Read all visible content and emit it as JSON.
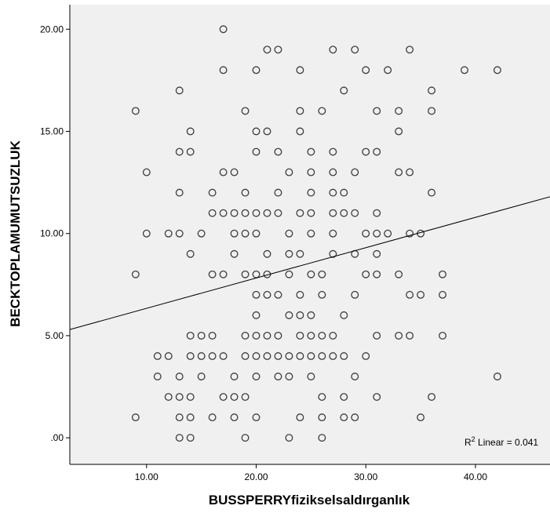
{
  "chart_data": {
    "type": "scatter",
    "xlabel": "BUSSPERRYfizikselsaldırganlık",
    "ylabel": "BECKTOPLAMUMUTSUZLUK",
    "xlim": [
      3.0,
      46.8
    ],
    "ylim": [
      -1.3,
      21.2
    ],
    "x_ticks": [
      10,
      20,
      30,
      40
    ],
    "x_tick_labels": [
      "10.00",
      "20.00",
      "30.00",
      "40.00"
    ],
    "y_ticks": [
      0,
      5,
      10,
      15,
      20
    ],
    "y_tick_labels": [
      ".00",
      "5.00",
      "10.00",
      "15.00",
      "20.00"
    ],
    "grid": false,
    "background_color": "#f0f0f0",
    "point_color": "#3c3c3c",
    "fit_line": {
      "type": "linear",
      "x": [
        3.0,
        46.8
      ],
      "y": [
        5.3,
        11.8
      ],
      "color": "#000000"
    },
    "annotation": {
      "sup": "2",
      "text_prefix": "R",
      "text_suffix": " Linear = 0.041"
    },
    "points": [
      [
        17,
        20
      ],
      [
        21,
        19
      ],
      [
        22,
        19
      ],
      [
        27,
        19
      ],
      [
        29,
        19
      ],
      [
        34,
        19
      ],
      [
        17,
        18
      ],
      [
        20,
        18
      ],
      [
        24,
        18
      ],
      [
        30,
        18
      ],
      [
        32,
        18
      ],
      [
        39,
        18
      ],
      [
        42,
        18
      ],
      [
        13,
        17
      ],
      [
        28,
        17
      ],
      [
        36,
        17
      ],
      [
        9,
        16
      ],
      [
        19,
        16
      ],
      [
        24,
        16
      ],
      [
        26,
        16
      ],
      [
        31,
        16
      ],
      [
        33,
        16
      ],
      [
        36,
        16
      ],
      [
        14,
        15
      ],
      [
        20,
        15
      ],
      [
        21,
        15
      ],
      [
        24,
        15
      ],
      [
        33,
        15
      ],
      [
        13,
        14
      ],
      [
        14,
        14
      ],
      [
        20,
        14
      ],
      [
        22,
        14
      ],
      [
        25,
        14
      ],
      [
        27,
        14
      ],
      [
        30,
        14
      ],
      [
        31,
        14
      ],
      [
        10,
        13
      ],
      [
        17,
        13
      ],
      [
        18,
        13
      ],
      [
        23,
        13
      ],
      [
        25,
        13
      ],
      [
        27,
        13
      ],
      [
        29,
        13
      ],
      [
        33,
        13
      ],
      [
        34,
        13
      ],
      [
        13,
        12
      ],
      [
        16,
        12
      ],
      [
        19,
        12
      ],
      [
        22,
        12
      ],
      [
        25,
        12
      ],
      [
        27,
        12
      ],
      [
        28,
        12
      ],
      [
        36,
        12
      ],
      [
        16,
        11
      ],
      [
        17,
        11
      ],
      [
        18,
        11
      ],
      [
        19,
        11
      ],
      [
        20,
        11
      ],
      [
        21,
        11
      ],
      [
        22,
        11
      ],
      [
        24,
        11
      ],
      [
        25,
        11
      ],
      [
        27,
        11
      ],
      [
        28,
        11
      ],
      [
        29,
        11
      ],
      [
        31,
        11
      ],
      [
        10,
        10
      ],
      [
        12,
        10
      ],
      [
        13,
        10
      ],
      [
        15,
        10
      ],
      [
        18,
        10
      ],
      [
        19,
        10
      ],
      [
        20,
        10
      ],
      [
        23,
        10
      ],
      [
        25,
        10
      ],
      [
        27,
        10
      ],
      [
        30,
        10
      ],
      [
        31,
        10
      ],
      [
        32,
        10
      ],
      [
        34,
        10
      ],
      [
        35,
        10
      ],
      [
        14,
        9
      ],
      [
        18,
        9
      ],
      [
        21,
        9
      ],
      [
        23,
        9
      ],
      [
        24,
        9
      ],
      [
        27,
        9
      ],
      [
        29,
        9
      ],
      [
        31,
        9
      ],
      [
        9,
        8
      ],
      [
        16,
        8
      ],
      [
        17,
        8
      ],
      [
        19,
        8
      ],
      [
        20,
        8
      ],
      [
        21,
        8
      ],
      [
        23,
        8
      ],
      [
        25,
        8
      ],
      [
        26,
        8
      ],
      [
        30,
        8
      ],
      [
        31,
        8
      ],
      [
        33,
        8
      ],
      [
        37,
        8
      ],
      [
        20,
        7
      ],
      [
        21,
        7
      ],
      [
        22,
        7
      ],
      [
        24,
        7
      ],
      [
        26,
        7
      ],
      [
        29,
        7
      ],
      [
        34,
        7
      ],
      [
        35,
        7
      ],
      [
        37,
        7
      ],
      [
        20,
        6
      ],
      [
        23,
        6
      ],
      [
        24,
        6
      ],
      [
        25,
        6
      ],
      [
        28,
        6
      ],
      [
        14,
        5
      ],
      [
        15,
        5
      ],
      [
        16,
        5
      ],
      [
        19,
        5
      ],
      [
        20,
        5
      ],
      [
        21,
        5
      ],
      [
        22,
        5
      ],
      [
        24,
        5
      ],
      [
        25,
        5
      ],
      [
        26,
        5
      ],
      [
        27,
        5
      ],
      [
        31,
        5
      ],
      [
        33,
        5
      ],
      [
        34,
        5
      ],
      [
        37,
        5
      ],
      [
        11,
        4
      ],
      [
        12,
        4
      ],
      [
        14,
        4
      ],
      [
        15,
        4
      ],
      [
        16,
        4
      ],
      [
        17,
        4
      ],
      [
        19,
        4
      ],
      [
        20,
        4
      ],
      [
        21,
        4
      ],
      [
        22,
        4
      ],
      [
        23,
        4
      ],
      [
        24,
        4
      ],
      [
        25,
        4
      ],
      [
        26,
        4
      ],
      [
        27,
        4
      ],
      [
        28,
        4
      ],
      [
        30,
        4
      ],
      [
        11,
        3
      ],
      [
        13,
        3
      ],
      [
        15,
        3
      ],
      [
        18,
        3
      ],
      [
        20,
        3
      ],
      [
        22,
        3
      ],
      [
        23,
        3
      ],
      [
        25,
        3
      ],
      [
        29,
        3
      ],
      [
        42,
        3
      ],
      [
        12,
        2
      ],
      [
        13,
        2
      ],
      [
        14,
        2
      ],
      [
        17,
        2
      ],
      [
        18,
        2
      ],
      [
        19,
        2
      ],
      [
        26,
        2
      ],
      [
        28,
        2
      ],
      [
        31,
        2
      ],
      [
        36,
        2
      ],
      [
        9,
        1
      ],
      [
        13,
        1
      ],
      [
        14,
        1
      ],
      [
        16,
        1
      ],
      [
        18,
        1
      ],
      [
        20,
        1
      ],
      [
        24,
        1
      ],
      [
        26,
        1
      ],
      [
        28,
        1
      ],
      [
        29,
        1
      ],
      [
        35,
        1
      ],
      [
        13,
        0
      ],
      [
        14,
        0
      ],
      [
        19,
        0
      ],
      [
        23,
        0
      ],
      [
        26,
        0
      ]
    ]
  }
}
